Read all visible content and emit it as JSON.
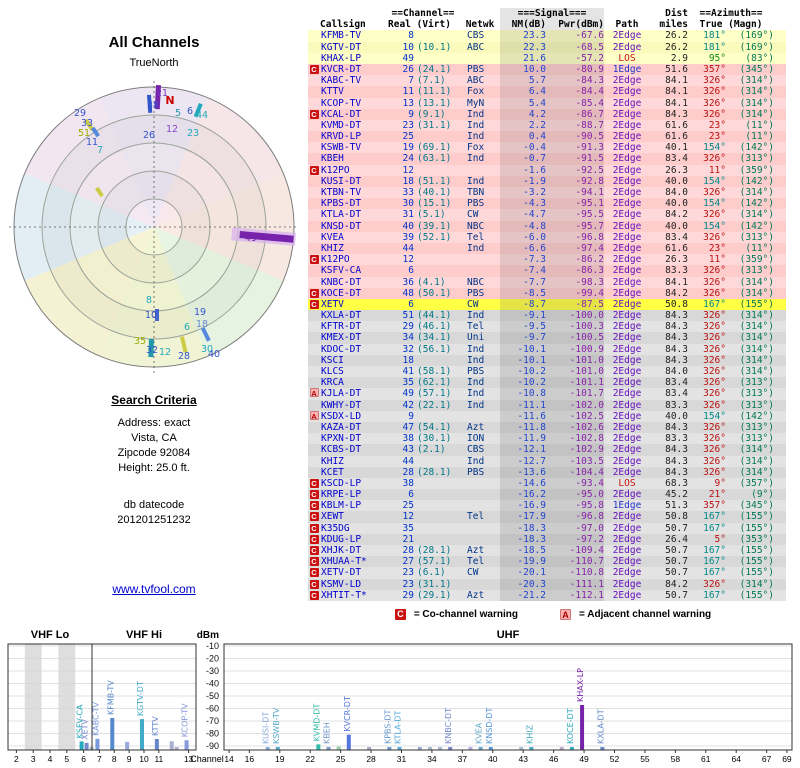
{
  "link": {
    "text": "www.tvfool.com"
  },
  "search_criteria": {
    "heading": "Search Criteria",
    "lines": [
      "Address: exact",
      "Vista, CA",
      "Zipcode 92084",
      "Height: 25.0 ft."
    ],
    "datecode_label": "db datecode",
    "datecode": "201201251232"
  },
  "legend": {
    "c_symbol": "C",
    "c_text": "= Co-channel warning",
    "a_symbol": "A",
    "a_text": "= Adjacent channel warning"
  },
  "table": {
    "group_channel": "==Channel==",
    "group_signal": "===Signal===",
    "group_dist": "Dist",
    "group_azimuth": "==Azimuth==",
    "col_callsign": "Callsign",
    "col_real_virt": "Real (Virt)",
    "col_netwk": "Netwk",
    "col_nm": "NM(dB)",
    "col_pwr": "Pwr(dBm)",
    "col_path": "Path",
    "col_miles": "miles",
    "col_true_magn": "True (Magn)",
    "rows": [
      [
        "y",
        "",
        "KFMB-TV",
        "8",
        "",
        "CBS",
        "23.3",
        "-67.6",
        "2Edge",
        "26.2",
        "181°",
        "(169°)"
      ],
      [
        "y",
        "",
        "KGTV-DT",
        "10",
        "(10.1)",
        "ABC",
        "22.3",
        "-68.5",
        "2Edge",
        "26.2",
        "181°",
        "(169°)"
      ],
      [
        "y",
        "",
        "KHAX-LP",
        "49",
        "",
        "",
        "21.6",
        "-57.2",
        "LOS",
        "2.9",
        "95°",
        "(83°)"
      ],
      [
        "p",
        "C",
        "KVCR-DT",
        "26",
        "(24.1)",
        "PBS",
        "10.0",
        "-80.9",
        "1Edge",
        "51.6",
        "357°",
        "(345°)"
      ],
      [
        "p",
        "",
        "KABC-TV",
        "7",
        "(7.1)",
        "ABC",
        "5.7",
        "-84.3",
        "2Edge",
        "84.1",
        "326°",
        "(314°)"
      ],
      [
        "p",
        "",
        "KTTV",
        "11",
        "(11.1)",
        "Fox",
        "6.4",
        "-84.4",
        "2Edge",
        "84.1",
        "326°",
        "(314°)"
      ],
      [
        "p",
        "",
        "KCOP-TV",
        "13",
        "(13.1)",
        "MyN",
        "5.4",
        "-85.4",
        "2Edge",
        "84.1",
        "326°",
        "(314°)"
      ],
      [
        "p",
        "C",
        "KCAL-DT",
        "9",
        "(9.1)",
        "Ind",
        "4.2",
        "-86.7",
        "2Edge",
        "84.3",
        "326°",
        "(314°)"
      ],
      [
        "p",
        "",
        "KVMD-DT",
        "23",
        "(31.1)",
        "Ind",
        "2.2",
        "-88.7",
        "2Edge",
        "61.6",
        "23°",
        "(11°)"
      ],
      [
        "p",
        "",
        "KRVD-LP",
        "25",
        "",
        "Ind",
        "0.4",
        "-90.5",
        "2Edge",
        "61.6",
        "23°",
        "(11°)"
      ],
      [
        "p",
        "",
        "KSWB-TV",
        "19",
        "(69.1)",
        "Fox",
        "-0.4",
        "-91.3",
        "2Edge",
        "40.1",
        "154°",
        "(142°)"
      ],
      [
        "p",
        "",
        "KBEH",
        "24",
        "(63.1)",
        "Ind",
        "-0.7",
        "-91.5",
        "2Edge",
        "83.4",
        "326°",
        "(313°)"
      ],
      [
        "p",
        "C",
        "K12PO",
        "12",
        "",
        "",
        "-1.6",
        "-92.5",
        "2Edge",
        "26.3",
        "11°",
        "(359°)"
      ],
      [
        "p",
        "",
        "KUSI-DT",
        "18",
        "(51.1)",
        "Ind",
        "-1.9",
        "-92.8",
        "2Edge",
        "40.0",
        "154°",
        "(142°)"
      ],
      [
        "p",
        "",
        "KTBN-TV",
        "33",
        "(40.1)",
        "TBN",
        "-3.2",
        "-94.1",
        "2Edge",
        "84.0",
        "326°",
        "(314°)"
      ],
      [
        "p",
        "",
        "KPBS-DT",
        "30",
        "(15.1)",
        "PBS",
        "-4.3",
        "-95.1",
        "2Edge",
        "40.0",
        "154°",
        "(142°)"
      ],
      [
        "p",
        "",
        "KTLA-DT",
        "31",
        "(5.1)",
        "CW",
        "-4.7",
        "-95.5",
        "2Edge",
        "84.2",
        "326°",
        "(314°)"
      ],
      [
        "p",
        "",
        "KNSD-DT",
        "40",
        "(39.1)",
        "NBC",
        "-4.8",
        "-95.7",
        "2Edge",
        "40.0",
        "154°",
        "(142°)"
      ],
      [
        "p",
        "",
        "KVEA",
        "39",
        "(52.1)",
        "Tel",
        "-6.0",
        "-96.8",
        "2Edge",
        "83.4",
        "326°",
        "(313°)"
      ],
      [
        "p",
        "",
        "KHIZ",
        "44",
        "",
        "Ind",
        "-6.6",
        "-97.4",
        "2Edge",
        "61.6",
        "23°",
        "(11°)"
      ],
      [
        "p",
        "C",
        "K12PO",
        "12",
        "",
        "",
        "-7.3",
        "-86.2",
        "2Edge",
        "26.3",
        "11°",
        "(359°)"
      ],
      [
        "p",
        "",
        "KSFV-CA",
        "6",
        "",
        "",
        "-7.4",
        "-86.3",
        "2Edge",
        "83.3",
        "326°",
        "(313°)"
      ],
      [
        "p",
        "",
        "KNBC-DT",
        "36",
        "(4.1)",
        "NBC",
        "-7.7",
        "-98.3",
        "2Edge",
        "84.1",
        "326°",
        "(314°)"
      ],
      [
        "p",
        "C",
        "KOCE-DT",
        "48",
        "(50.1)",
        "PBS",
        "-8.5",
        "-99.4",
        "2Edge",
        "84.2",
        "326°",
        "(314°)"
      ],
      [
        "h",
        "C",
        "XETV",
        "6",
        "",
        "CW",
        "-8.7",
        "-87.5",
        "2Edge",
        "50.8",
        "167°",
        "(155°)"
      ],
      [
        "g",
        "",
        "KXLA-DT",
        "51",
        "(44.1)",
        "Ind",
        "-9.1",
        "-100.0",
        "2Edge",
        "84.3",
        "326°",
        "(314°)"
      ],
      [
        "g",
        "",
        "KFTR-DT",
        "29",
        "(46.1)",
        "Tel",
        "-9.5",
        "-100.3",
        "2Edge",
        "84.3",
        "326°",
        "(314°)"
      ],
      [
        "g",
        "",
        "KMEX-DT",
        "34",
        "(34.1)",
        "Uni",
        "-9.7",
        "-100.5",
        "2Edge",
        "84.3",
        "326°",
        "(314°)"
      ],
      [
        "g",
        "",
        "KDOC-DT",
        "32",
        "(56.1)",
        "Ind",
        "-10.1",
        "-100.9",
        "2Edge",
        "84.3",
        "326°",
        "(314°)"
      ],
      [
        "g",
        "",
        "KSCI",
        "18",
        "",
        "Ind",
        "-10.1",
        "-101.0",
        "2Edge",
        "84.3",
        "326°",
        "(314°)"
      ],
      [
        "g",
        "",
        "KLCS",
        "41",
        "(58.1)",
        "PBS",
        "-10.2",
        "-101.0",
        "2Edge",
        "84.0",
        "326°",
        "(314°)"
      ],
      [
        "g",
        "",
        "KRCA",
        "35",
        "(62.1)",
        "Ind",
        "-10.2",
        "-101.1",
        "2Edge",
        "83.4",
        "326°",
        "(313°)"
      ],
      [
        "g",
        "A",
        "KJLA-DT",
        "49",
        "(57.1)",
        "Ind",
        "-10.8",
        "-101.7",
        "2Edge",
        "83.4",
        "326°",
        "(313°)"
      ],
      [
        "g",
        "",
        "KWHY-DT",
        "42",
        "(22.1)",
        "Ind",
        "-11.1",
        "-102.0",
        "2Edge",
        "83.3",
        "326°",
        "(313°)"
      ],
      [
        "g",
        "A",
        "KSDX-LD",
        "9",
        "",
        "",
        "-11.6",
        "-102.5",
        "2Edge",
        "40.0",
        "154°",
        "(142°)"
      ],
      [
        "g",
        "",
        "KAZA-DT",
        "47",
        "(54.1)",
        "Azt",
        "-11.8",
        "-102.6",
        "2Edge",
        "84.3",
        "326°",
        "(313°)"
      ],
      [
        "g",
        "",
        "KPXN-DT",
        "38",
        "(30.1)",
        "ION",
        "-11.9",
        "-102.8",
        "2Edge",
        "83.3",
        "326°",
        "(313°)"
      ],
      [
        "g",
        "",
        "KCBS-DT",
        "43",
        "(2.1)",
        "CBS",
        "-12.1",
        "-102.9",
        "2Edge",
        "84.3",
        "326°",
        "(314°)"
      ],
      [
        "g",
        "",
        "KHIZ",
        "44",
        "",
        "Ind",
        "-12.7",
        "-103.5",
        "2Edge",
        "84.3",
        "326°",
        "(314°)"
      ],
      [
        "g",
        "",
        "KCET",
        "28",
        "(28.1)",
        "PBS",
        "-13.6",
        "-104.4",
        "2Edge",
        "84.3",
        "326°",
        "(314°)"
      ],
      [
        "g",
        "C",
        "KSCD-LP",
        "38",
        "",
        "",
        "-14.6",
        "-93.4",
        "LOS",
        "68.3",
        "9°",
        "(357°)"
      ],
      [
        "g",
        "C",
        "KRPE-LP",
        "6",
        "",
        "",
        "-16.2",
        "-95.0",
        "2Edge",
        "45.2",
        "21°",
        "(9°)"
      ],
      [
        "g",
        "C",
        "KBLM-LP",
        "25",
        "",
        "",
        "-16.9",
        "-95.8",
        "1Edge",
        "51.3",
        "357°",
        "(345°)"
      ],
      [
        "g",
        "C",
        "XEWT",
        "12",
        "",
        "Tel",
        "-17.9",
        "-96.8",
        "2Edge",
        "50.8",
        "167°",
        "(155°)"
      ],
      [
        "g",
        "C",
        "K35DG",
        "35",
        "",
        "",
        "-18.3",
        "-97.0",
        "2Edge",
        "50.7",
        "167°",
        "(155°)"
      ],
      [
        "g",
        "C",
        "KDUG-LP",
        "21",
        "",
        "",
        "-18.3",
        "-97.2",
        "2Edge",
        "26.4",
        "5°",
        "(353°)"
      ],
      [
        "g",
        "C",
        "XHJK-DT",
        "28",
        "(28.1)",
        "Azt",
        "-18.5",
        "-109.4",
        "2Edge",
        "50.7",
        "167°",
        "(155°)"
      ],
      [
        "g",
        "C",
        "XHUAA-T*",
        "27",
        "(57.1)",
        "Tel",
        "-19.9",
        "-110.7",
        "2Edge",
        "50.7",
        "167°",
        "(155°)"
      ],
      [
        "g",
        "C",
        "XETV-DT",
        "23",
        "(6.1)",
        "CW",
        "-20.1",
        "-110.8",
        "2Edge",
        "50.7",
        "167°",
        "(155°)"
      ],
      [
        "g",
        "C",
        "KSMV-LD",
        "23",
        "(31.1)",
        "",
        "-20.3",
        "-111.1",
        "2Edge",
        "84.2",
        "326°",
        "(314°)"
      ],
      [
        "g",
        "C",
        "XHTIT-T*",
        "29",
        "(29.1)",
        "Azt",
        "-21.2",
        "-112.1",
        "2Edge",
        "50.7",
        "167°",
        "(155°)"
      ]
    ]
  },
  "chart_data": [
    {
      "type": "polar",
      "name": "azimuth-plot",
      "title": "All Channels",
      "north_label": "TrueNorth",
      "north_marker": "N",
      "sector_colors": [
        "#dccdf2",
        "#f6cdda",
        "#f8d2c6",
        "#cdeec6",
        "#e8f0a6",
        "#f2eca6",
        "#c6def6",
        "#ecd0ee"
      ],
      "labels": [
        [
          "21",
          158,
          27,
          "#7733bb"
        ],
        [
          "38",
          149,
          39,
          "#3355cc"
        ],
        [
          "N",
          166,
          35,
          "#cc0000"
        ],
        [
          "5",
          174,
          47,
          "#2299aa"
        ],
        [
          "6",
          186,
          45,
          "#3355cc"
        ],
        [
          "44",
          198,
          49,
          "#22aabb"
        ],
        [
          "26",
          145,
          69,
          "#3355cc"
        ],
        [
          "12",
          168,
          63,
          "#8844cc"
        ],
        [
          "23",
          189,
          67,
          "#22aabb"
        ],
        [
          "29",
          76,
          47,
          "#3355cc"
        ],
        [
          "33",
          83,
          57,
          "#3355cc"
        ],
        [
          "51",
          80,
          67,
          "#99aa00"
        ],
        [
          "11",
          88,
          76,
          "#3355cc"
        ],
        [
          "7",
          96,
          84,
          "#22aabb"
        ],
        [
          "49",
          247,
          172,
          "#7722aa"
        ],
        [
          "8",
          145,
          234,
          "#22aabb"
        ],
        [
          "10",
          147,
          249,
          "#3355cc"
        ],
        [
          "19",
          196,
          246,
          "#3355cc"
        ],
        [
          "6",
          183,
          261,
          "#22aabb"
        ],
        [
          "18",
          198,
          258,
          "#6688cc"
        ],
        [
          "35",
          136,
          275,
          "#99aa00"
        ],
        [
          "32",
          148,
          284,
          "#3355cc"
        ],
        [
          "12",
          161,
          286,
          "#22aabb"
        ],
        [
          "28",
          180,
          290,
          "#3355cc"
        ],
        [
          "30",
          203,
          283,
          "#22aabb"
        ],
        [
          "40",
          210,
          288,
          "#3355cc"
        ]
      ],
      "ticks": [
        [
          152,
          16,
          5,
          24,
          3,
          "#7722aa"
        ],
        [
          143,
          26,
          4,
          18,
          -4,
          "#3355cc"
        ],
        [
          195,
          34,
          4,
          14,
          22,
          "#22aabb"
        ],
        [
          80,
          52,
          4,
          12,
          -34,
          "#cccc44"
        ],
        [
          87,
          60,
          4,
          10,
          -34,
          "#5588dd"
        ],
        [
          91,
          120,
          4,
          10,
          -34,
          "#cccc44"
        ],
        [
          176,
          268,
          4,
          16,
          -13,
          "#cccc44"
        ],
        [
          145,
          270,
          5,
          18,
          2,
          "#2299aa"
        ],
        [
          151,
          240,
          4,
          12,
          0,
          "#4466cc"
        ],
        [
          197,
          260,
          4,
          14,
          -26,
          "#5588dd"
        ]
      ]
    },
    {
      "type": "bar",
      "name": "power-by-channel",
      "ylabel": "dBm",
      "xlabel": "Channel",
      "ylim": [
        -90,
        -10
      ],
      "y_ticks": [
        "-10",
        "-20",
        "-30",
        "-40",
        "-50",
        "-60",
        "-70",
        "-80",
        "-90"
      ],
      "sections": [
        {
          "label": "VHF Lo",
          "ticks": [
            "2",
            "3",
            "4",
            "5",
            "6"
          ]
        },
        {
          "label": "VHF Hi",
          "ticks": [
            "7",
            "8",
            "9",
            "10",
            "11",
            "13"
          ]
        },
        {
          "label": "UHF",
          "ticks": [
            "14",
            "16",
            "19",
            "22",
            "25",
            "28",
            "31",
            "34",
            "37",
            "40",
            "43",
            "46",
            "49",
            "52",
            "55",
            "58",
            "61",
            "64",
            "67",
            "69"
          ]
        }
      ],
      "bars": [
        [
          6,
          "KSFV-CA",
          -86.3,
          "#22aabb",
          1
        ],
        [
          6,
          "XETV",
          -87.5,
          "#7788cc",
          1
        ],
        [
          6,
          "KRPE-LP",
          -95.0,
          "#aabbcc",
          0
        ],
        [
          7,
          "KABC-TV",
          -84.3,
          "#7799dd",
          1
        ],
        [
          8,
          "KFMB-TV",
          -67.6,
          "#5588cc",
          1
        ],
        [
          9,
          "KCAL-DT",
          -86.7,
          "#99aadd",
          0
        ],
        [
          10,
          "KGTV-DT",
          -68.5,
          "#44aacc",
          1
        ],
        [
          11,
          "KTTV",
          -84.4,
          "#6688cc",
          1
        ],
        [
          12,
          "K12PO",
          -86.2,
          "#aab0cc",
          0
        ],
        [
          12,
          "XEWT",
          -96.8,
          "#bbaacc",
          0
        ],
        [
          13,
          "KCOP-TV",
          -85.4,
          "#8899dd",
          1
        ],
        [
          18,
          "KUSI-DT",
          -92.8,
          "#88aadd",
          1
        ],
        [
          19,
          "KSWB-TV",
          -91.3,
          "#55aacc",
          1
        ],
        [
          23,
          "KVMD-DT",
          -88.7,
          "#33bbaa",
          1
        ],
        [
          24,
          "KBEH",
          -91.5,
          "#7799cc",
          1
        ],
        [
          25,
          "KRVD-LP",
          -90.5,
          "#99ccaa",
          0
        ],
        [
          26,
          "KVCR-DT",
          -80.9,
          "#5577dd",
          1
        ],
        [
          28,
          "KCET",
          -104.4,
          "#aaaacc",
          0
        ],
        [
          30,
          "KPBS-DT",
          -95.1,
          "#6699cc",
          1
        ],
        [
          31,
          "KTLA-DT",
          -95.5,
          "#55aadd",
          1
        ],
        [
          33,
          "KTBN-TV",
          -94.1,
          "#99aacc",
          0
        ],
        [
          34,
          "KMEX-DT",
          -100.5,
          "#aabbcc",
          0
        ],
        [
          35,
          "KRCA",
          -101.1,
          "#aabbcc",
          0
        ],
        [
          36,
          "KNBC-DT",
          -98.3,
          "#7788cc",
          1
        ],
        [
          38,
          "KSCD-LP",
          -93.4,
          "#bbaadd",
          0
        ],
        [
          39,
          "KVEA",
          -96.8,
          "#66aacc",
          1
        ],
        [
          40,
          "KNSD-DT",
          -95.7,
          "#5599dd",
          1
        ],
        [
          43,
          "KCBS-DT",
          -102.9,
          "#aabbcc",
          0
        ],
        [
          44,
          "KHIZ",
          -97.4,
          "#44aabb",
          1
        ],
        [
          47,
          "KAZA-DT",
          -102.6,
          "#bbaacc",
          0
        ],
        [
          48,
          "KOCE-DT",
          -99.4,
          "#33aabb",
          1
        ],
        [
          49,
          "KHAX-LP",
          -57.2,
          "#7722aa",
          1
        ],
        [
          51,
          "KXLA-DT",
          -100.0,
          "#6688cc",
          1
        ]
      ]
    }
  ]
}
